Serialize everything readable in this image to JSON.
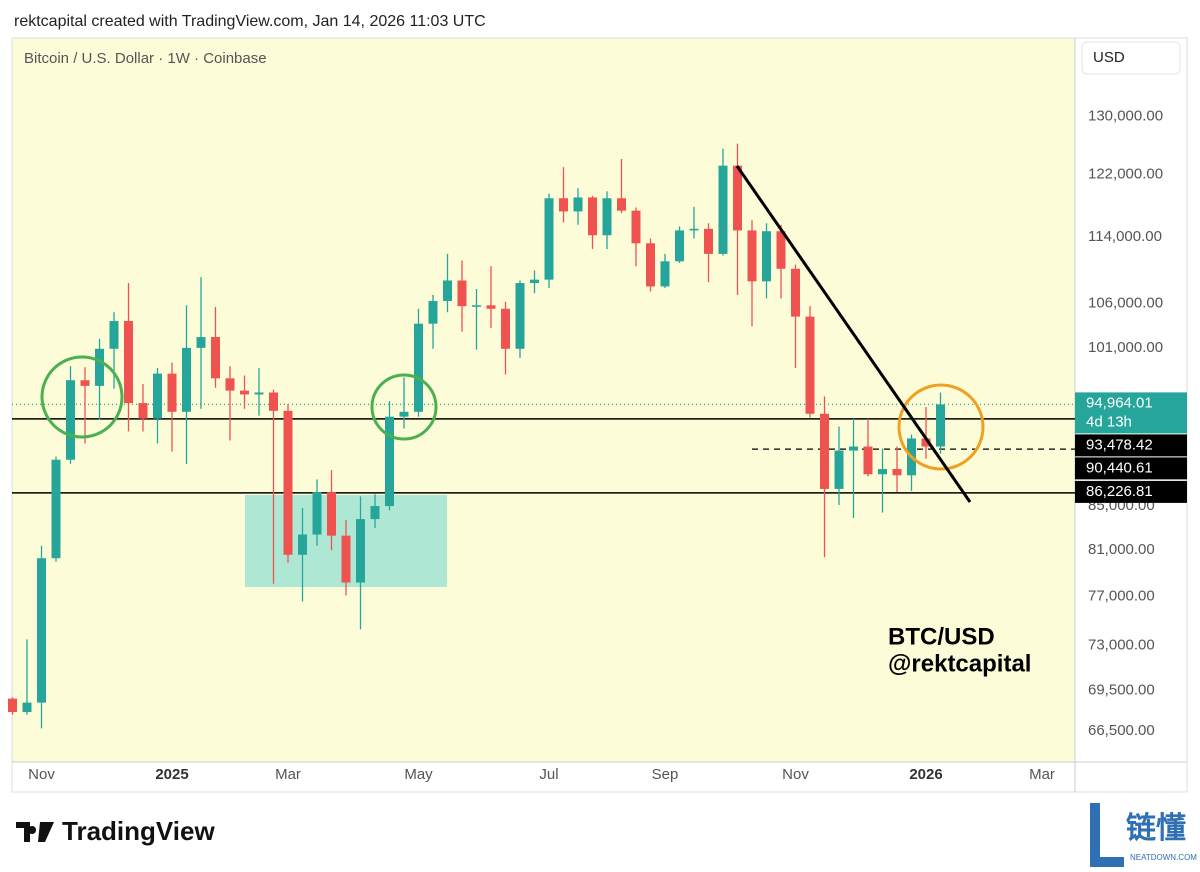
{
  "header": "rektcapital created with TradingView.com, Jan 14, 2026 11:03 UTC",
  "chart_data": {
    "type": "candlestick",
    "title": "Bitcoin / U.S. Dollar · 1W · Coinbase",
    "currency": "USD",
    "categories": [
      null,
      null,
      "Nov",
      null,
      null,
      null,
      null,
      null,
      null,
      null,
      null,
      "2025",
      null,
      null,
      null,
      null,
      null,
      null,
      null,
      "Mar",
      null,
      null,
      null,
      null,
      null,
      null,
      null,
      null,
      "May",
      null,
      null,
      null,
      null,
      null,
      null,
      null,
      null,
      "Jul",
      null,
      null,
      null,
      null,
      null,
      null,
      null,
      "Sep",
      null,
      null,
      null,
      null,
      null,
      null,
      null,
      null,
      "Nov",
      null,
      null,
      null,
      null,
      null,
      null,
      null,
      null,
      "2026",
      null,
      null,
      null,
      null,
      null,
      null,
      null,
      "Mar",
      null
    ],
    "open": [
      68900,
      67900,
      68600,
      80300,
      89400,
      97500,
      96900,
      100900,
      104000,
      95100,
      93500,
      98200,
      94200,
      101000,
      102200,
      97700,
      96400,
      96000,
      96200,
      94300,
      80600,
      82400,
      86300,
      82300,
      78200,
      83800,
      85000,
      93700,
      94200,
      103700,
      106300,
      108700,
      105700,
      105800,
      105400,
      100900,
      108400,
      108800,
      118900,
      117200,
      119000,
      114200,
      118900,
      117300,
      113200,
      108000,
      111000,
      114800,
      115000,
      111900,
      123200,
      114800,
      108600,
      114700,
      110100,
      104500,
      94000,
      86600,
      90300,
      90700,
      88000,
      88500,
      87900,
      91500,
      90700,
      null,
      null,
      null,
      null,
      null,
      null,
      null,
      null
    ],
    "high": [
      69000,
      73500,
      81400,
      89700,
      99000,
      98900,
      102000,
      105000,
      108400,
      97100,
      98800,
      99400,
      105800,
      109100,
      105600,
      99000,
      98000,
      98800,
      96500,
      95000,
      84800,
      87500,
      88400,
      83700,
      85900,
      86100,
      95300,
      97800,
      105400,
      107000,
      111900,
      111100,
      107700,
      110400,
      106200,
      108700,
      109900,
      119500,
      123000,
      120200,
      119200,
      119800,
      124100,
      117700,
      113800,
      111900,
      115300,
      117800,
      115700,
      125500,
      126200,
      116100,
      115700,
      115500,
      110600,
      105700,
      95800,
      92700,
      93500,
      93500,
      90500,
      90700,
      91900,
      94700,
      96200,
      null,
      null,
      null,
      null,
      null,
      null,
      null,
      null
    ],
    "low": [
      67700,
      67700,
      66700,
      80000,
      89000,
      91000,
      93400,
      96600,
      92200,
      92200,
      91000,
      90200,
      89000,
      94500,
      96700,
      91300,
      94500,
      93800,
      78100,
      79900,
      76600,
      81400,
      81000,
      77100,
      74300,
      83000,
      84600,
      92500,
      93700,
      100900,
      105000,
      102800,
      100800,
      103200,
      98100,
      99900,
      107200,
      107800,
      115800,
      115500,
      112500,
      112500,
      117000,
      110400,
      107400,
      107800,
      110800,
      113800,
      108500,
      111700,
      107000,
      103400,
      106600,
      106600,
      98800,
      93600,
      80400,
      85100,
      83900,
      87800,
      84400,
      86300,
      86400,
      89500,
      90000,
      null,
      null,
      null,
      null,
      null,
      null,
      null,
      null
    ],
    "close": [
      67900,
      68600,
      80300,
      89400,
      97500,
      96900,
      100900,
      104000,
      95100,
      93500,
      98200,
      94200,
      101000,
      102200,
      97700,
      96400,
      96000,
      96200,
      94300,
      80600,
      82400,
      86300,
      82300,
      78200,
      83800,
      85000,
      93700,
      94200,
      103700,
      106300,
      108700,
      105700,
      105800,
      105400,
      100900,
      108400,
      108800,
      118900,
      117200,
      119000,
      114200,
      118900,
      117300,
      113200,
      108000,
      111000,
      114800,
      115000,
      111900,
      123200,
      114800,
      108600,
      114700,
      110100,
      104500,
      94000,
      86600,
      90300,
      90700,
      88000,
      88500,
      87900,
      91500,
      90700,
      94964.01,
      null,
      null,
      null,
      null,
      null,
      null,
      null,
      null
    ],
    "up_color": "#26a69a",
    "down_color": "#ef5350",
    "log_scale": true,
    "grid": false,
    "ylim": [
      64300,
      141600
    ],
    "yticks": [
      {
        "value": 66500,
        "label": "66,500.00"
      },
      {
        "value": 69500,
        "label": "69,500.00"
      },
      {
        "value": 73000,
        "label": "73,000.00"
      },
      {
        "value": 77000,
        "label": "77,000.00"
      },
      {
        "value": 81000,
        "label": "81,000.00"
      },
      {
        "value": 85000,
        "label": "85,000.00"
      },
      {
        "value": 101000,
        "label": "101,000.00"
      },
      {
        "value": 106000,
        "label": "106,000.00"
      },
      {
        "value": 114000,
        "label": "114,000.00"
      },
      {
        "value": 122000,
        "label": "122,000.00"
      },
      {
        "value": 130000,
        "label": "130,000.00"
      }
    ],
    "price_levels": [
      {
        "value": 94964.01,
        "label": "94,964.01",
        "countdown": "4d 13h",
        "style": "dotted",
        "color": "#26a69a"
      },
      {
        "value": 93478.42,
        "label": "93,478.42",
        "style": "solid",
        "color": "#000000"
      },
      {
        "value": 90440.61,
        "label": "90,440.61",
        "style": "dashed",
        "color": "#000000"
      },
      {
        "value": 86226.81,
        "label": "86,226.81",
        "style": "solid",
        "color": "#000000"
      }
    ],
    "annotations": [
      "BTC/USD",
      "@rektcapital"
    ]
  },
  "footer": {
    "brand": "TradingView"
  },
  "watermark": {
    "name": "链懂",
    "site": "NEATDOWN.COM"
  }
}
